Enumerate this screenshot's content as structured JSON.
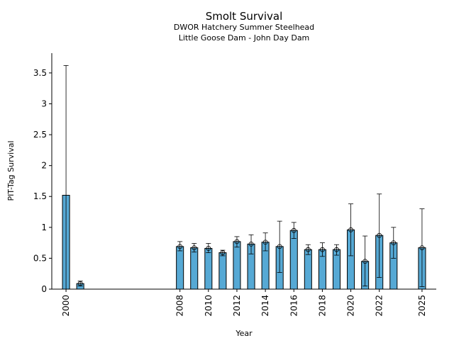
{
  "chart_data": {
    "type": "bar",
    "title": "Smolt Survival",
    "subtitle_lines": [
      "DWOR Hatchery Summer Steelhead",
      "Little Goose Dam - John Day Dam"
    ],
    "xlabel": "Year",
    "ylabel": "PIT-Tag Survival",
    "xlim": [
      1999.0,
      2026.0
    ],
    "ylim": [
      0,
      3.82
    ],
    "yticks": [
      0,
      0.5,
      1,
      1.5,
      2,
      2.5,
      3,
      3.5
    ],
    "ytick_labels": [
      "0",
      "0.5",
      "1",
      "1.5",
      "2",
      "2.5",
      "3",
      "3.5"
    ],
    "xticks": [
      2000,
      2008,
      2010,
      2012,
      2014,
      2016,
      2018,
      2020,
      2022,
      2025
    ],
    "xtick_labels": [
      "2000",
      "2008",
      "2010",
      "2012",
      "2014",
      "2016",
      "2018",
      "2020",
      "2022",
      "2025"
    ],
    "bar_color": "#56a9d5",
    "bar_width_years": 0.5,
    "points": [
      {
        "x": 2000,
        "value": 1.52,
        "lower": 0.0,
        "upper": 3.62,
        "marker": false
      },
      {
        "x": 2001,
        "value": 0.09,
        "lower": 0.05,
        "upper": 0.13,
        "marker": true
      },
      {
        "x": 2008,
        "value": 0.69,
        "lower": 0.62,
        "upper": 0.77,
        "marker": true
      },
      {
        "x": 2009,
        "value": 0.67,
        "lower": 0.6,
        "upper": 0.74,
        "marker": true
      },
      {
        "x": 2010,
        "value": 0.66,
        "lower": 0.59,
        "upper": 0.74,
        "marker": true
      },
      {
        "x": 2011,
        "value": 0.59,
        "lower": 0.54,
        "upper": 0.63,
        "marker": true
      },
      {
        "x": 2012,
        "value": 0.77,
        "lower": 0.68,
        "upper": 0.85,
        "marker": true
      },
      {
        "x": 2013,
        "value": 0.73,
        "lower": 0.57,
        "upper": 0.88,
        "marker": true
      },
      {
        "x": 2014,
        "value": 0.76,
        "lower": 0.62,
        "upper": 0.91,
        "marker": true
      },
      {
        "x": 2015,
        "value": 0.69,
        "lower": 0.27,
        "upper": 1.1,
        "marker": true
      },
      {
        "x": 2016,
        "value": 0.95,
        "lower": 0.82,
        "upper": 1.08,
        "marker": true
      },
      {
        "x": 2017,
        "value": 0.64,
        "lower": 0.56,
        "upper": 0.72,
        "marker": true
      },
      {
        "x": 2018,
        "value": 0.64,
        "lower": 0.53,
        "upper": 0.75,
        "marker": true
      },
      {
        "x": 2019,
        "value": 0.64,
        "lower": 0.55,
        "upper": 0.72,
        "marker": true
      },
      {
        "x": 2020,
        "value": 0.96,
        "lower": 0.54,
        "upper": 1.38,
        "marker": true
      },
      {
        "x": 2021,
        "value": 0.45,
        "lower": 0.05,
        "upper": 0.86,
        "marker": true
      },
      {
        "x": 2022,
        "value": 0.87,
        "lower": 0.19,
        "upper": 1.54,
        "marker": true
      },
      {
        "x": 2023,
        "value": 0.75,
        "lower": 0.5,
        "upper": 1.0,
        "marker": true
      },
      {
        "x": 2025,
        "value": 0.67,
        "lower": 0.04,
        "upper": 1.3,
        "marker": true
      }
    ]
  }
}
